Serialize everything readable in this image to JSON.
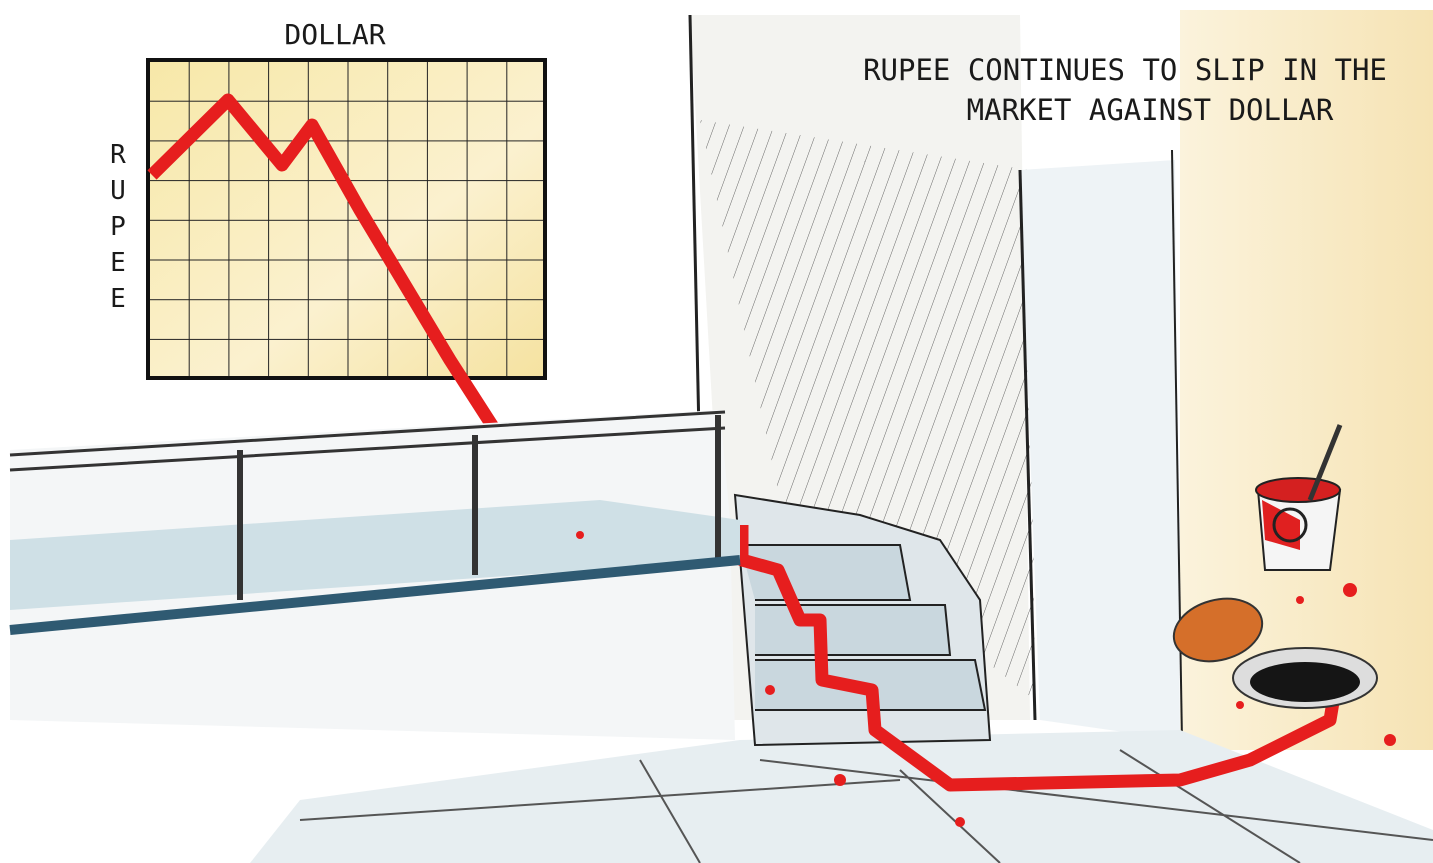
{
  "sign": {
    "x_label": "DOLLAR",
    "y_label": "RUPEE"
  },
  "caption": {
    "lines": [
      "RUPEE CONTINUES TO SLIP IN THE",
      "MARKET AGAINST DOLLAR"
    ]
  }
}
